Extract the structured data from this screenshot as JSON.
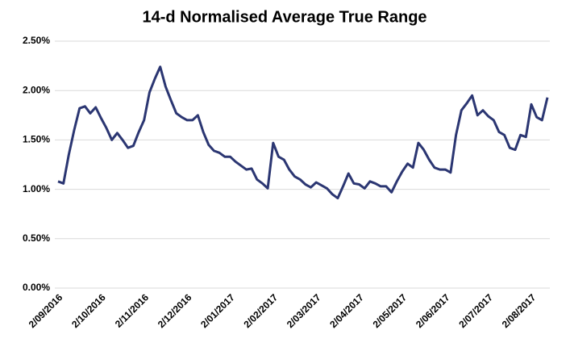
{
  "chart_data": {
    "type": "line",
    "title": "14-d Normalised Average True Range",
    "categories": [
      "2/09/2016",
      null,
      null,
      null,
      null,
      null,
      null,
      null,
      "2/10/2016",
      null,
      null,
      null,
      null,
      null,
      null,
      null,
      "2/11/2016",
      null,
      null,
      null,
      null,
      null,
      null,
      null,
      "2/12/2016",
      null,
      null,
      null,
      null,
      null,
      null,
      null,
      "2/01/2017",
      null,
      null,
      null,
      null,
      null,
      null,
      null,
      "2/02/2017",
      null,
      null,
      null,
      null,
      null,
      null,
      null,
      "2/03/2017",
      null,
      null,
      null,
      null,
      null,
      null,
      null,
      "2/04/2017",
      null,
      null,
      null,
      null,
      null,
      null,
      null,
      "2/05/2017",
      null,
      null,
      null,
      null,
      null,
      null,
      null,
      "2/06/2017",
      null,
      null,
      null,
      null,
      null,
      null,
      null,
      "2/07/2017",
      null,
      null,
      null,
      null,
      null,
      null,
      null,
      "2/08/2017",
      null,
      null,
      null
    ],
    "series": [
      {
        "color": "#2b3672",
        "values": [
          1.08,
          1.06,
          1.35,
          1.6,
          1.82,
          1.84,
          1.77,
          1.83,
          1.72,
          1.62,
          1.5,
          1.57,
          1.5,
          1.42,
          1.44,
          1.58,
          1.7,
          1.98,
          2.12,
          2.24,
          2.04,
          1.9,
          1.77,
          1.73,
          1.7,
          1.7,
          1.75,
          1.58,
          1.45,
          1.39,
          1.37,
          1.33,
          1.33,
          1.28,
          1.24,
          1.2,
          1.21,
          1.1,
          1.06,
          1.01,
          1.47,
          1.33,
          1.3,
          1.2,
          1.13,
          1.1,
          1.05,
          1.02,
          1.07,
          1.04,
          1.01,
          0.95,
          0.91,
          1.03,
          1.16,
          1.06,
          1.05,
          1.01,
          1.08,
          1.06,
          1.03,
          1.03,
          0.97,
          1.08,
          1.18,
          1.26,
          1.22,
          1.47,
          1.4,
          1.3,
          1.22,
          1.2,
          1.2,
          1.17,
          1.55,
          1.8,
          1.87,
          1.95,
          1.75,
          1.8,
          1.74,
          1.7,
          1.58,
          1.55,
          1.42,
          1.4,
          1.55,
          1.53,
          1.86,
          1.73,
          1.7,
          1.93
        ]
      }
    ],
    "ylim": [
      0,
      2.5
    ],
    "yticks": [
      {
        "value": 0,
        "label": "0.00%"
      },
      {
        "value": 0.5,
        "label": "0.50%"
      },
      {
        "value": 1.0,
        "label": "1.00%"
      },
      {
        "value": 1.5,
        "label": "1.50%"
      },
      {
        "value": 2.0,
        "label": "2.00%"
      },
      {
        "value": 2.5,
        "label": "2.50%"
      }
    ],
    "grid": true
  }
}
